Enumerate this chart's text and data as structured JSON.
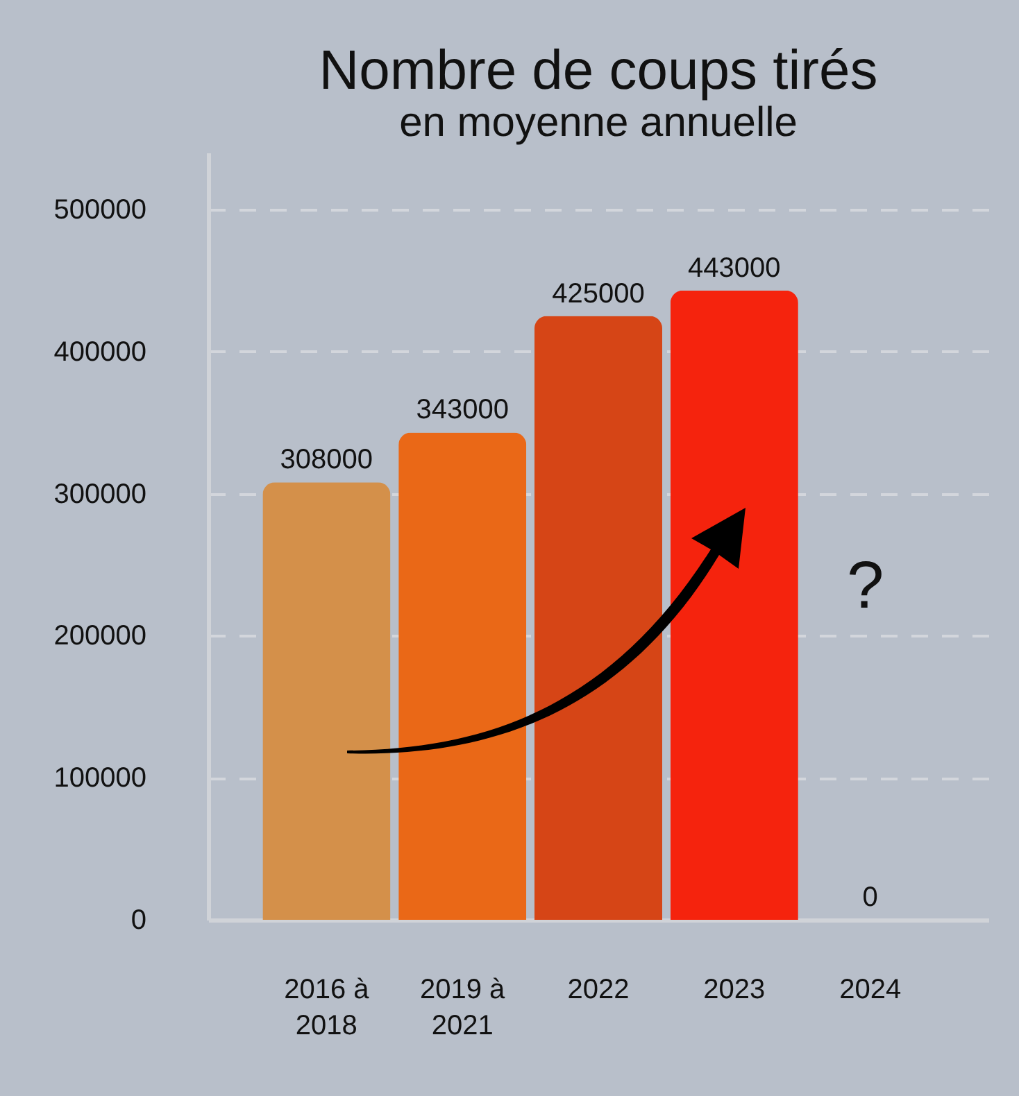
{
  "chart_data": {
    "type": "bar",
    "title": "Nombre de coups tirés",
    "subtitle": "en moyenne annuelle",
    "categories": [
      "2016 à 2018",
      "2019 à 2021",
      "2022",
      "2023",
      "2024"
    ],
    "values": [
      308000,
      343000,
      425000,
      443000,
      0
    ],
    "colors": [
      "#d4904a",
      "#ea6817",
      "#d64516",
      "#f5230d",
      "#f5230d"
    ],
    "ylim": [
      0,
      540000
    ],
    "yticks": [
      0,
      100000,
      200000,
      300000,
      400000,
      500000
    ],
    "grid": "y",
    "data_labels": true,
    "annotations": [
      "?"
    ]
  }
}
